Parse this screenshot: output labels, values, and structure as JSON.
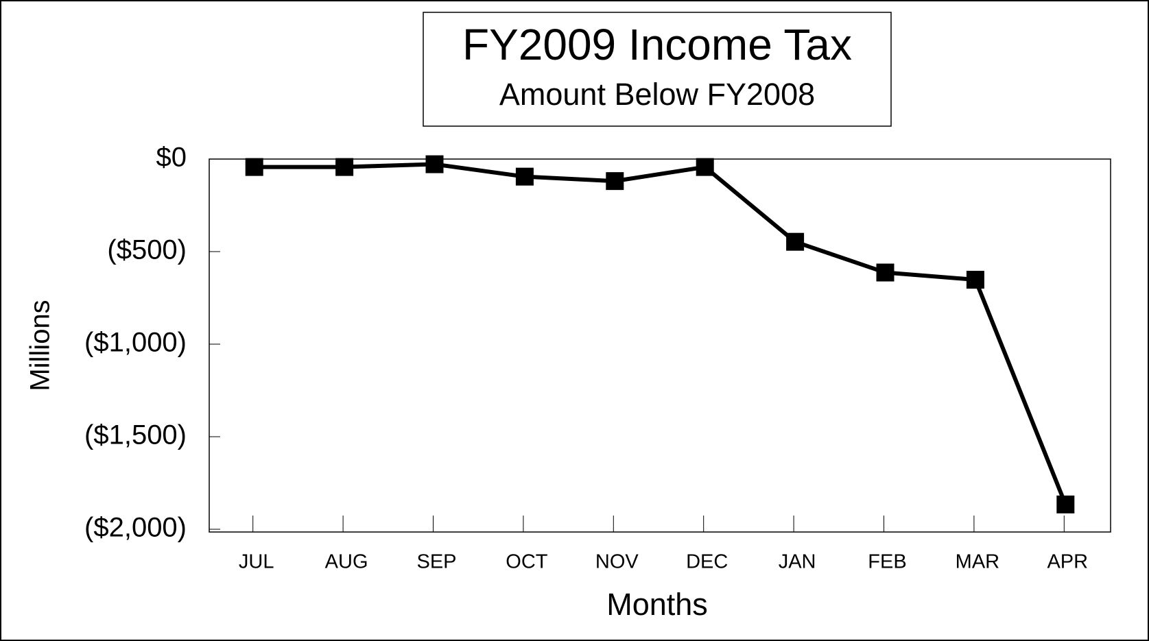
{
  "chart_data": {
    "type": "line",
    "title": "FY2009 Income Tax",
    "subtitle": "Amount Below FY2008",
    "x_label": "Months",
    "y_label": "Millions",
    "categories": [
      "JUL",
      "AUG",
      "SEP",
      "OCT",
      "NOV",
      "DEC",
      "JAN",
      "FEB",
      "MAR",
      "APR"
    ],
    "series": [
      {
        "name": "Amount Below FY2008",
        "color": "#000000",
        "values": [
          -43,
          -43,
          -28,
          -95,
          -119,
          -43,
          -447,
          -613,
          -652,
          -1866
        ]
      }
    ],
    "ylim": [
      -2000,
      0
    ],
    "yticks": [
      {
        "value": 0,
        "label": "$0"
      },
      {
        "value": -500,
        "label": "($500)"
      },
      {
        "value": -1000,
        "label": "($1,000)"
      },
      {
        "value": -1500,
        "label": "($1,500)"
      },
      {
        "value": -2000,
        "label": "($2,000)"
      }
    ],
    "grid": false
  }
}
